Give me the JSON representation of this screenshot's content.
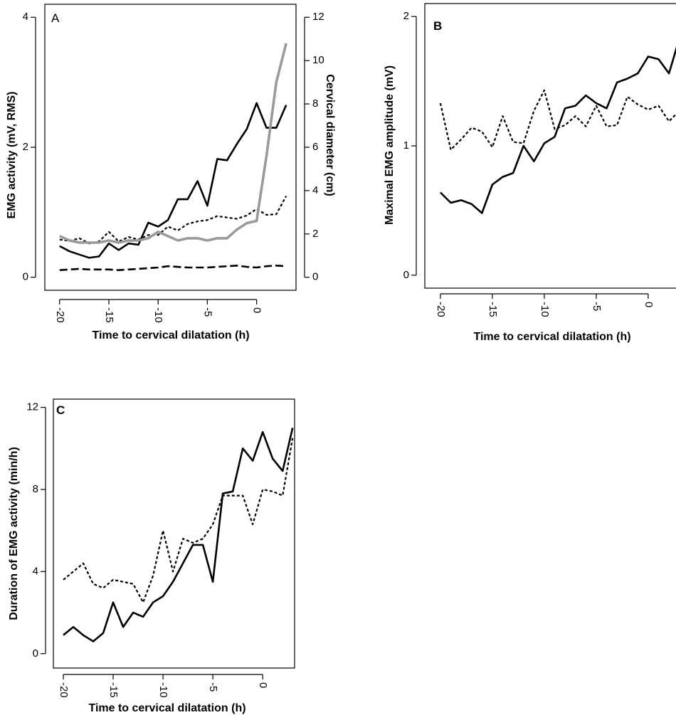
{
  "chart_data": [
    {
      "panel": "A",
      "type": "line",
      "xlabel": "Time to cervical dilatation (h)",
      "ylabel": "EMG activity (mV, RMS)",
      "y2label": "Cervical diameter (cm)",
      "xlim": [
        -21.5,
        4
      ],
      "ylim": [
        -0.2,
        4.2
      ],
      "y2lim": [
        -0.6,
        12.6
      ],
      "xticks": [
        "-20",
        "-15",
        "-10",
        "-5",
        "0"
      ],
      "yticks": [
        "0",
        "2",
        "4"
      ],
      "y2ticks": [
        "0",
        "2",
        "4",
        "6",
        "8",
        "10",
        "12"
      ],
      "x": [
        -20,
        -19,
        -18,
        -17,
        -16,
        -15,
        -14,
        -13,
        -12,
        -11,
        -10,
        -9,
        -8,
        -7,
        -6,
        -5,
        -4,
        -3,
        -2,
        -1,
        0,
        1,
        2,
        3
      ],
      "series": [
        {
          "axis": "y",
          "color": "#000000",
          "style": "solid",
          "values": [
            0.48,
            0.4,
            0.35,
            0.3,
            0.32,
            0.52,
            0.42,
            0.52,
            0.5,
            0.84,
            0.78,
            0.88,
            1.2,
            1.2,
            1.48,
            1.1,
            1.82,
            1.8,
            2.05,
            2.28,
            2.68,
            2.3,
            2.3,
            2.65
          ]
        },
        {
          "axis": "y",
          "color": "#000000",
          "style": "dotted",
          "values": [
            0.58,
            0.56,
            0.6,
            0.52,
            0.55,
            0.7,
            0.55,
            0.62,
            0.58,
            0.65,
            0.65,
            0.78,
            0.72,
            0.82,
            0.86,
            0.88,
            0.94,
            0.92,
            0.9,
            0.95,
            1.05,
            0.96,
            0.97,
            1.25
          ]
        },
        {
          "axis": "y",
          "color": "#000000",
          "style": "dashed",
          "values": [
            0.11,
            0.12,
            0.13,
            0.12,
            0.12,
            0.12,
            0.11,
            0.12,
            0.13,
            0.14,
            0.15,
            0.17,
            0.16,
            0.15,
            0.15,
            0.15,
            0.16,
            0.17,
            0.18,
            0.16,
            0.15,
            0.17,
            0.18,
            0.17
          ]
        },
        {
          "axis": "y2",
          "color": "#9a9a9a",
          "style": "solid-thick",
          "values": [
            1.9,
            1.7,
            1.6,
            1.6,
            1.6,
            1.7,
            1.6,
            1.7,
            1.7,
            1.8,
            2.1,
            1.9,
            1.7,
            1.8,
            1.8,
            1.7,
            1.8,
            1.8,
            2.2,
            2.5,
            2.6,
            5.6,
            9.0,
            10.8
          ]
        }
      ]
    },
    {
      "panel": "B",
      "type": "line",
      "xlabel": "Time to cervical dilatation (h)",
      "ylabel": "Maximal EMG amplitude (mV)",
      "xlim": [
        -21.5,
        3.5
      ],
      "ylim": [
        -0.1,
        2.1
      ],
      "xticks": [
        "-20",
        "-15",
        "-10",
        "-5",
        "0"
      ],
      "yticks": [
        "0",
        "1",
        "2"
      ],
      "x": [
        -20,
        -19,
        -18,
        -17,
        -16,
        -15,
        -14,
        -13,
        -12,
        -11,
        -10,
        -9,
        -8,
        -7,
        -6,
        -5,
        -4,
        -3,
        -2,
        -1,
        0,
        1,
        2,
        3
      ],
      "series": [
        {
          "color": "#000000",
          "style": "solid",
          "values": [
            0.64,
            0.56,
            0.58,
            0.55,
            0.48,
            0.7,
            0.76,
            0.79,
            1.0,
            0.88,
            1.02,
            1.07,
            1.29,
            1.31,
            1.39,
            1.33,
            1.29,
            1.49,
            1.52,
            1.56,
            1.69,
            1.67,
            1.56,
            1.83
          ]
        },
        {
          "color": "#000000",
          "style": "dotted",
          "values": [
            1.33,
            0.97,
            1.05,
            1.14,
            1.11,
            0.99,
            1.23,
            1.03,
            1.02,
            1.27,
            1.43,
            1.13,
            1.16,
            1.23,
            1.15,
            1.31,
            1.15,
            1.16,
            1.38,
            1.32,
            1.28,
            1.31,
            1.19,
            1.27
          ]
        }
      ]
    },
    {
      "panel": "C",
      "type": "line",
      "xlabel": "Time to cervical dilatation (h)",
      "ylabel": "Duration of EMG activity (min/h)",
      "xlim": [
        -21,
        3.2
      ],
      "ylim": [
        -0.7,
        12.4
      ],
      "xticks": [
        "-20",
        "-15",
        "-10",
        "-5",
        "0"
      ],
      "yticks": [
        "0",
        "4",
        "8",
        "12"
      ],
      "x": [
        -20,
        -19,
        -18,
        -17,
        -16,
        -15,
        -14,
        -13,
        -12,
        -11,
        -10,
        -9,
        -8,
        -7,
        -6,
        -5,
        -4,
        -3,
        -2,
        -1,
        0,
        1,
        2,
        3
      ],
      "series": [
        {
          "color": "#000000",
          "style": "solid",
          "values": [
            0.9,
            1.3,
            0.9,
            0.6,
            1.0,
            2.5,
            1.3,
            2.0,
            1.8,
            2.5,
            2.8,
            3.5,
            4.4,
            5.3,
            5.3,
            3.5,
            7.8,
            7.9,
            10.0,
            9.4,
            10.8,
            9.5,
            8.9,
            11.0
          ]
        },
        {
          "color": "#000000",
          "style": "dotted",
          "values": [
            3.6,
            4.0,
            4.4,
            3.4,
            3.2,
            3.6,
            3.5,
            3.4,
            2.5,
            3.8,
            6.0,
            4.0,
            5.6,
            5.4,
            5.6,
            6.3,
            7.7,
            7.7,
            7.7,
            6.3,
            8.0,
            7.9,
            7.7,
            10.5
          ]
        }
      ]
    }
  ],
  "panel_letters": {
    "a": "A",
    "b": "B",
    "c": "C"
  },
  "axis_text": {
    "a_x": "Time to cervical dilatation (h)",
    "a_y": "EMG activity (mV, RMS)",
    "a_y2": "Cervical diameter (cm)",
    "b_x": "Time to cervical dilatation (h)",
    "b_y": "Maximal EMG amplitude (mV)",
    "c_x": "Time to cervical dilatation (h)",
    "c_y": "Duration of EMG activity (min/h)"
  }
}
